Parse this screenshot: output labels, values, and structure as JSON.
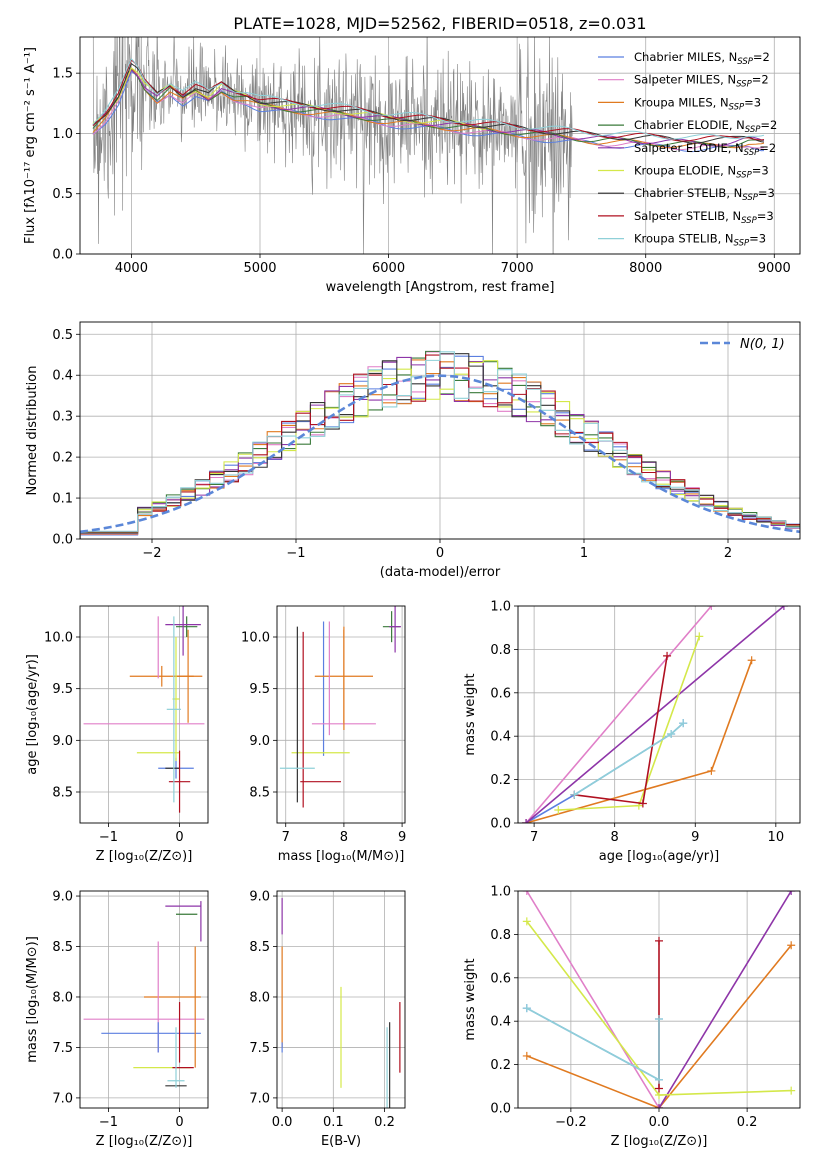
{
  "figure": {
    "title": "PLATE=1028, MJD=52562, FIBERID=0518, z=0.031"
  },
  "colors": {
    "spectrum": "#808080",
    "normal_curve": "#5b87d8",
    "grid": "#b0b0b0"
  },
  "models": [
    {
      "name": "Chabrier MILES, N",
      "sub": "SSP",
      "tail": "=2",
      "color": "#5b7fe0"
    },
    {
      "name": "Salpeter MILES, N",
      "sub": "SSP",
      "tail": "=2",
      "color": "#e07fc8"
    },
    {
      "name": "Kroupa MILES, N",
      "sub": "SSP",
      "tail": "=3",
      "color": "#e07a20"
    },
    {
      "name": "Chabrier ELODIE, N",
      "sub": "SSP",
      "tail": "=2",
      "color": "#3a7a3a"
    },
    {
      "name": "Salpeter ELODIE, N",
      "sub": "SSP",
      "tail": "=2",
      "color": "#8e35a8"
    },
    {
      "name": "Kroupa ELODIE, N",
      "sub": "SSP",
      "tail": "=3",
      "color": "#d4e84a"
    },
    {
      "name": "Chabrier STELIB, N",
      "sub": "SSP",
      "tail": "=3",
      "color": "#333333"
    },
    {
      "name": "Salpeter STELIB, N",
      "sub": "SSP",
      "tail": "=3",
      "color": "#b01020"
    },
    {
      "name": "Kroupa STELIB, N",
      "sub": "SSP",
      "tail": "=3",
      "color": "#8fd0d8"
    }
  ],
  "chart_data": [
    {
      "id": "spectrum",
      "type": "line",
      "title": "PLATE=1028, MJD=52562, FIBERID=0518, z=0.031",
      "xlabel": "wavelength [Angstrom, rest frame]",
      "ylabel": "Flux [fλ10⁻¹⁷ erg cm⁻² s⁻¹ A⁻¹]",
      "xlim": [
        3600,
        9200
      ],
      "ylim": [
        0,
        1.8
      ],
      "xticks": [
        4000,
        5000,
        6000,
        7000,
        8000,
        9000
      ],
      "yticks": [
        0.0,
        0.5,
        1.0,
        1.5
      ],
      "model_x": [
        3700,
        3800,
        3900,
        4000,
        4050,
        4100,
        4200,
        4300,
        4400,
        4500,
        4600,
        4700,
        4800,
        4900,
        5000,
        5200,
        5400,
        5600,
        5800,
        6000,
        6200,
        6400,
        6600,
        6800,
        7000,
        7200,
        7400,
        7600,
        7800,
        8000,
        8200,
        8400,
        8600,
        8700,
        8800,
        8900
      ],
      "model_y": [
        1.05,
        1.15,
        1.3,
        1.55,
        1.5,
        1.4,
        1.3,
        1.38,
        1.3,
        1.36,
        1.3,
        1.38,
        1.32,
        1.3,
        1.25,
        1.22,
        1.2,
        1.18,
        1.15,
        1.12,
        1.1,
        1.08,
        1.06,
        1.04,
        1.02,
        1.0,
        0.98,
        0.96,
        0.95,
        0.94,
        0.93,
        0.92,
        0.92,
        0.93,
        0.95,
        0.93
      ]
    },
    {
      "id": "residual-histogram",
      "type": "line",
      "xlabel": "(data-model)/error",
      "ylabel": "Normed distribution",
      "xlim": [
        -2.5,
        2.5
      ],
      "ylim": [
        0,
        0.53
      ],
      "xticks": [
        -2,
        -1,
        0,
        1,
        2
      ],
      "yticks": [
        0.0,
        0.1,
        0.2,
        0.3,
        0.4,
        0.5
      ],
      "normal_label": "N(0, 1)",
      "bin_width": 0.1
    },
    {
      "id": "age-vs-Z",
      "type": "scatter",
      "xlabel": "Z [log₁₀(Z/Z⊙)]",
      "ylabel": "age  [log₁₀(age/yr)]",
      "xlim": [
        -1.4,
        0.4
      ],
      "ylim": [
        8.2,
        10.3
      ],
      "xticks": [
        -1,
        0
      ],
      "yticks": [
        8.5,
        9.0,
        9.5,
        10.0
      ],
      "points": [
        {
          "model": 0,
          "x": -0.05,
          "xerr": 0.25,
          "y": 8.73,
          "yerr": 0.1
        },
        {
          "model": 1,
          "x": -0.5,
          "xerr": 0.85,
          "y": 9.16,
          "yerr": 0.0
        },
        {
          "model": 2,
          "x": -0.25,
          "xerr": 0.45,
          "y": 9.62,
          "yerr": 0.1
        },
        {
          "model": 2,
          "x": 0.12,
          "xerr": 0.2,
          "y": 9.62,
          "yerr": 0.45
        },
        {
          "model": 3,
          "x": 0.1,
          "xerr": 0.15,
          "y": 10.1,
          "yerr": 0.1
        },
        {
          "model": 4,
          "x": 0.05,
          "xerr": 0.25,
          "y": 10.12,
          "yerr": 0.3
        },
        {
          "model": 5,
          "x": -0.3,
          "xerr": 0.3,
          "y": 8.88,
          "yerr": 0.0
        },
        {
          "model": 5,
          "x": -0.05,
          "xerr": 0.05,
          "y": 9.4,
          "yerr": 0.6
        },
        {
          "model": 6,
          "x": -0.1,
          "xerr": 0.1,
          "y": 8.73,
          "yerr": 0.0
        },
        {
          "model": 7,
          "x": 0.0,
          "xerr": 0.15,
          "y": 8.6,
          "yerr": 0.3
        },
        {
          "model": 1,
          "x": -0.3,
          "xerr": 0.0,
          "y": 9.9,
          "yerr": 0.3
        },
        {
          "model": 8,
          "x": -0.08,
          "xerr": 0.1,
          "y": 9.3,
          "yerr": 0.9
        }
      ]
    },
    {
      "id": "age-vs-mass",
      "type": "scatter",
      "xlabel": "mass [log₁₀(M/M⊙)]",
      "ylabel": "",
      "xlim": [
        6.85,
        9.05
      ],
      "ylim": [
        8.2,
        10.3
      ],
      "xticks": [
        7,
        8,
        9
      ],
      "yticks": [
        8.5,
        9.0,
        9.5,
        10.0
      ],
      "points": [
        {
          "model": 0,
          "x": 7.65,
          "xerr": 0.0,
          "y": 9.5,
          "yerr": 0.65
        },
        {
          "model": 1,
          "x": 8.0,
          "xerr": 0.55,
          "y": 9.16,
          "yerr": 0.0
        },
        {
          "model": 2,
          "x": 8.0,
          "xerr": 0.5,
          "y": 9.62,
          "yerr": 0.45
        },
        {
          "model": 3,
          "x": 8.82,
          "xerr": 0.15,
          "y": 10.1,
          "yerr": 0.15
        },
        {
          "model": 4,
          "x": 8.88,
          "xerr": 0.1,
          "y": 10.1,
          "yerr": 0.25
        },
        {
          "model": 5,
          "x": 7.6,
          "xerr": 0.5,
          "y": 8.88,
          "yerr": 0.0
        },
        {
          "model": 6,
          "x": 7.2,
          "xerr": 0.0,
          "y": 9.25,
          "yerr": 0.85
        },
        {
          "model": 7,
          "x": 7.3,
          "xerr": 0.0,
          "y": 9.2,
          "yerr": 0.85
        },
        {
          "model": 7,
          "x": 7.6,
          "xerr": 0.35,
          "y": 8.6,
          "yerr": 0.0
        },
        {
          "model": 8,
          "x": 7.2,
          "xerr": 0.3,
          "y": 8.73,
          "yerr": 0.0
        },
        {
          "model": 2,
          "x": 8.0,
          "xerr": 0.0,
          "y": 9.6,
          "yerr": 0.5
        },
        {
          "model": 1,
          "x": 7.75,
          "xerr": 0.0,
          "y": 9.6,
          "yerr": 0.55
        }
      ]
    },
    {
      "id": "mass-weight-vs-age",
      "type": "line",
      "xlabel": "age  [log₁₀(age/yr)]",
      "ylabel": "mass weight",
      "xlim": [
        6.8,
        10.3
      ],
      "ylim": [
        0,
        1.0
      ],
      "xticks": [
        7,
        8,
        9,
        10
      ],
      "yticks": [
        0.0,
        0.2,
        0.4,
        0.6,
        0.8,
        1.0
      ],
      "series": [
        {
          "model": 0,
          "x": [
            6.9,
            7.5,
            8.7,
            8.85
          ],
          "y": [
            0.0,
            0.13,
            0.41,
            0.46
          ]
        },
        {
          "model": 1,
          "x": [
            6.9,
            9.2
          ],
          "y": [
            0.0,
            1.0
          ]
        },
        {
          "model": 2,
          "x": [
            6.9,
            9.2,
            9.7
          ],
          "y": [
            0.0,
            0.24,
            0.75
          ]
        },
        {
          "model": 4,
          "x": [
            6.9,
            10.1
          ],
          "y": [
            0.0,
            1.0
          ]
        },
        {
          "model": 5,
          "x": [
            7.3,
            8.3,
            9.05
          ],
          "y": [
            0.06,
            0.08,
            0.86
          ]
        },
        {
          "model": 7,
          "x": [
            7.5,
            8.35,
            8.65
          ],
          "y": [
            0.13,
            0.09,
            0.77
          ]
        },
        {
          "model": 8,
          "x": [
            7.5,
            8.7,
            8.85
          ],
          "y": [
            0.13,
            0.41,
            0.46
          ]
        }
      ]
    },
    {
      "id": "mass-vs-Z",
      "type": "scatter",
      "xlabel": "Z [log₁₀(Z/Z⊙)]",
      "ylabel": "mass [log₁₀(M/M⊙)]",
      "xlim": [
        -1.4,
        0.4
      ],
      "ylim": [
        6.9,
        9.05
      ],
      "xticks": [
        -1,
        0
      ],
      "yticks": [
        7.0,
        7.5,
        8.0,
        8.5,
        9.0
      ],
      "points": [
        {
          "model": 0,
          "x": -0.4,
          "xerr": 0.7,
          "y": 7.64,
          "yerr": 0.0
        },
        {
          "model": 1,
          "x": -0.5,
          "xerr": 0.85,
          "y": 7.78,
          "yerr": 0.0
        },
        {
          "model": 2,
          "x": -0.1,
          "xerr": 0.4,
          "y": 8.0,
          "yerr": 0.0
        },
        {
          "model": 2,
          "x": 0.22,
          "xerr": 0.0,
          "y": 7.9,
          "yerr": 0.6
        },
        {
          "model": 3,
          "x": 0.1,
          "xerr": 0.15,
          "y": 8.82,
          "yerr": 0.0
        },
        {
          "model": 4,
          "x": 0.05,
          "xerr": 0.25,
          "y": 8.9,
          "yerr": 0.0
        },
        {
          "model": 4,
          "x": 0.3,
          "xerr": 0.0,
          "y": 8.75,
          "yerr": 0.2
        },
        {
          "model": 5,
          "x": -0.25,
          "xerr": 0.4,
          "y": 7.3,
          "yerr": 0.0
        },
        {
          "model": 6,
          "x": -0.05,
          "xerr": 0.15,
          "y": 7.12,
          "yerr": 0.0
        },
        {
          "model": 7,
          "x": 0.05,
          "xerr": 0.15,
          "y": 7.3,
          "yerr": 0.0
        },
        {
          "model": 7,
          "x": 0.0,
          "xerr": 0.0,
          "y": 7.65,
          "yerr": 0.3
        },
        {
          "model": 8,
          "x": -0.05,
          "xerr": 0.12,
          "y": 7.17,
          "yerr": 0.0
        },
        {
          "model": 1,
          "x": -0.3,
          "xerr": 0.0,
          "y": 8.0,
          "yerr": 0.55
        },
        {
          "model": 0,
          "x": -0.3,
          "xerr": 0.0,
          "y": 7.6,
          "yerr": 0.15
        },
        {
          "model": 8,
          "x": -0.05,
          "xerr": 0.0,
          "y": 7.4,
          "yerr": 0.3
        }
      ]
    },
    {
      "id": "mass-vs-ebv",
      "type": "scatter",
      "xlabel": "E(B-V)",
      "ylabel": "",
      "xlim": [
        -0.01,
        0.24
      ],
      "ylim": [
        6.9,
        9.05
      ],
      "xticks": [
        0.0,
        0.1,
        0.2
      ],
      "yticks": [
        7.0,
        7.5,
        8.0,
        8.5,
        9.0
      ],
      "points": [
        {
          "model": 2,
          "x": 0.0,
          "xerr": 0.0,
          "y": 8.0,
          "yerr": 0.5
        },
        {
          "model": 4,
          "x": 0.0,
          "xerr": 0.0,
          "y": 8.8,
          "yerr": 0.18
        },
        {
          "model": 0,
          "x": 0.0,
          "xerr": 0.0,
          "y": 7.5,
          "yerr": 0.05
        },
        {
          "model": 5,
          "x": 0.115,
          "xerr": 0.0,
          "y": 7.6,
          "yerr": 0.5
        },
        {
          "model": 6,
          "x": 0.21,
          "xerr": 0.0,
          "y": 7.3,
          "yerr": 0.45
        },
        {
          "model": 8,
          "x": 0.205,
          "xerr": 0.0,
          "y": 7.3,
          "yerr": 0.4
        },
        {
          "model": 7,
          "x": 0.23,
          "xerr": 0.0,
          "y": 7.6,
          "yerr": 0.35
        }
      ]
    },
    {
      "id": "mass-weight-vs-Z",
      "type": "line",
      "xlabel": "Z [log₁₀(Z/Z⊙)]",
      "ylabel": "mass weight",
      "xlim": [
        -0.32,
        0.32
      ],
      "ylim": [
        0,
        1.0
      ],
      "xticks": [
        -0.2,
        0.0,
        0.2
      ],
      "yticks": [
        0.0,
        0.2,
        0.4,
        0.6,
        0.8,
        1.0
      ],
      "series": [
        {
          "model": 0,
          "x": [
            -0.3,
            0.0,
            0.0
          ],
          "y": [
            0.46,
            0.13,
            0.41
          ]
        },
        {
          "model": 1,
          "x": [
            -0.3,
            0.0
          ],
          "y": [
            1.0,
            0.0
          ]
        },
        {
          "model": 2,
          "x": [
            -0.3,
            0.0,
            0.3
          ],
          "y": [
            0.24,
            0.0,
            0.75
          ]
        },
        {
          "model": 4,
          "x": [
            0.0,
            0.3
          ],
          "y": [
            0.0,
            1.0
          ]
        },
        {
          "model": 5,
          "x": [
            -0.3,
            0.0,
            0.3
          ],
          "y": [
            0.86,
            0.06,
            0.08
          ]
        },
        {
          "model": 7,
          "x": [
            0.0,
            0.0
          ],
          "y": [
            0.09,
            0.77
          ]
        },
        {
          "model": 8,
          "x": [
            -0.3,
            0.0,
            0.0
          ],
          "y": [
            0.46,
            0.13,
            0.41
          ]
        }
      ]
    }
  ]
}
